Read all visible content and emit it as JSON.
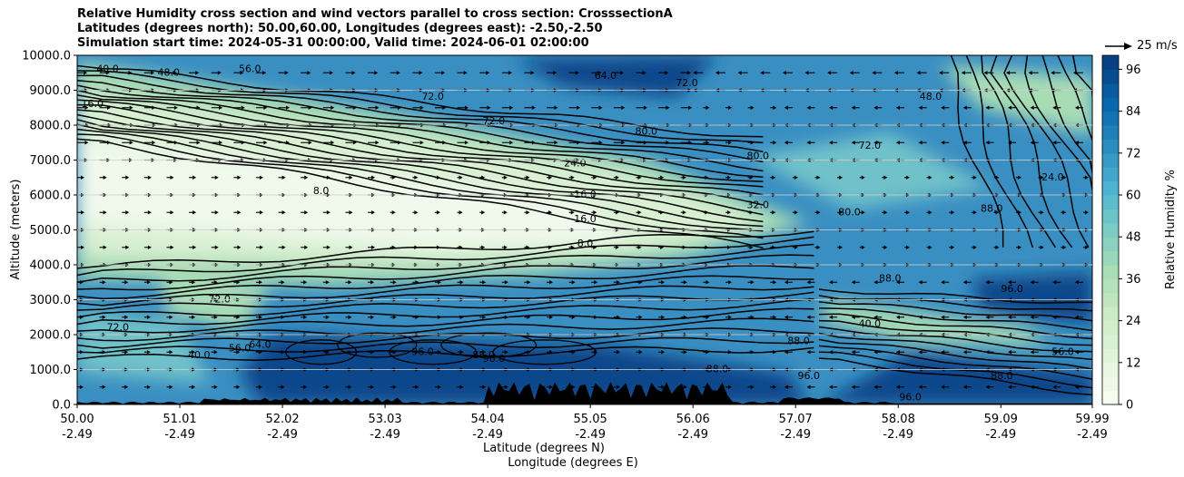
{
  "title": {
    "line1": "Relative Humidity cross section and wind vectors parallel to cross section: CrosssectionA",
    "line2": "Latitudes (degrees north): 50.00,60.00, Longitudes (degrees east): -2.50,-2.50",
    "line3": "Simulation start time: 2024-05-31 00:00:00, Valid time: 2024-06-01 02:00:00"
  },
  "wind_reference": {
    "label": "25 m/s"
  },
  "colors": {
    "humid_dark": "#08468b",
    "humid_mid": "#3a8fc2",
    "humid_light": "#6fc1c9",
    "dry_mid": "#a8dcb5",
    "dry_light": "#d9f0d3",
    "very_dry": "#f0f9ec",
    "terrain": "#000000"
  },
  "chart_data": {
    "type": "contourf",
    "xlabel_lat": "Latitude (degrees N)",
    "xlabel_lon": "Longitude (degrees E)",
    "ylabel": "Altitude (meters)",
    "ylim": [
      0,
      10000
    ],
    "yticks": [
      0,
      1000,
      2000,
      3000,
      4000,
      5000,
      6000,
      7000,
      8000,
      9000,
      10000
    ],
    "ytick_labels": [
      "0.0",
      "1000.0",
      "2000.0",
      "3000.0",
      "4000.0",
      "5000.0",
      "6000.0",
      "7000.0",
      "8000.0",
      "9000.0",
      "10000.0"
    ],
    "xlim": [
      50.0,
      59.99
    ],
    "xticks": [
      {
        "lat": "50.00",
        "lon": "-2.49"
      },
      {
        "lat": "51.01",
        "lon": "-2.49"
      },
      {
        "lat": "52.02",
        "lon": "-2.49"
      },
      {
        "lat": "53.03",
        "lon": "-2.49"
      },
      {
        "lat": "54.04",
        "lon": "-2.49"
      },
      {
        "lat": "55.05",
        "lon": "-2.49"
      },
      {
        "lat": "56.06",
        "lon": "-2.49"
      },
      {
        "lat": "57.07",
        "lon": "-2.49"
      },
      {
        "lat": "58.08",
        "lon": "-2.49"
      },
      {
        "lat": "59.09",
        "lon": "-2.49"
      },
      {
        "lat": "59.99",
        "lon": "-2.49"
      }
    ],
    "colorbar": {
      "label": "Relative Humidity %",
      "ticks": [
        0,
        12,
        24,
        36,
        48,
        60,
        72,
        84,
        96
      ],
      "levels": 25,
      "range": [
        0,
        100
      ]
    },
    "contour_labels": [
      {
        "text": "40.0",
        "lat": 50.3,
        "alt": 9600
      },
      {
        "text": "16.0",
        "lat": 50.15,
        "alt": 8600
      },
      {
        "text": "48.0",
        "lat": 50.9,
        "alt": 9500
      },
      {
        "text": "56.0",
        "lat": 51.7,
        "alt": 9600
      },
      {
        "text": "72.0",
        "lat": 53.5,
        "alt": 8800
      },
      {
        "text": "72.0",
        "lat": 54.1,
        "alt": 8100
      },
      {
        "text": "64.0",
        "lat": 55.2,
        "alt": 9400
      },
      {
        "text": "72.0",
        "lat": 56.0,
        "alt": 9200
      },
      {
        "text": "80.0",
        "lat": 55.6,
        "alt": 7800
      },
      {
        "text": "80.0",
        "lat": 56.7,
        "alt": 7100
      },
      {
        "text": "72.0",
        "lat": 57.8,
        "alt": 7400
      },
      {
        "text": "48.0",
        "lat": 58.4,
        "alt": 8800
      },
      {
        "text": "24.0",
        "lat": 59.6,
        "alt": 6500
      },
      {
        "text": "24.0",
        "lat": 54.9,
        "alt": 6900
      },
      {
        "text": "16.0",
        "lat": 55.0,
        "alt": 6000
      },
      {
        "text": "16.0",
        "lat": 55.0,
        "alt": 5300
      },
      {
        "text": "8.0",
        "lat": 55.0,
        "alt": 4600
      },
      {
        "text": "8.0",
        "lat": 52.4,
        "alt": 6100
      },
      {
        "text": "32.0",
        "lat": 56.7,
        "alt": 5700
      },
      {
        "text": "80.0",
        "lat": 57.6,
        "alt": 5500
      },
      {
        "text": "88.0",
        "lat": 59.0,
        "alt": 5600
      },
      {
        "text": "88.0",
        "lat": 58.0,
        "alt": 3600
      },
      {
        "text": "96.0",
        "lat": 59.2,
        "alt": 3300
      },
      {
        "text": "72.0",
        "lat": 50.4,
        "alt": 2200
      },
      {
        "text": "40.0",
        "lat": 51.2,
        "alt": 1400
      },
      {
        "text": "56.0",
        "lat": 51.6,
        "alt": 1600
      },
      {
        "text": "64.0",
        "lat": 51.8,
        "alt": 1700
      },
      {
        "text": "72.0",
        "lat": 51.4,
        "alt": 3000
      },
      {
        "text": "96.0",
        "lat": 53.4,
        "alt": 1500
      },
      {
        "text": "88.0",
        "lat": 54.0,
        "alt": 1400
      },
      {
        "text": "96.0",
        "lat": 54.1,
        "alt": 1300
      },
      {
        "text": "88.0",
        "lat": 56.3,
        "alt": 1000
      },
      {
        "text": "88.0",
        "lat": 57.1,
        "alt": 1800
      },
      {
        "text": "96.0",
        "lat": 57.2,
        "alt": 800
      },
      {
        "text": "40.0",
        "lat": 57.8,
        "alt": 2300
      },
      {
        "text": "56.0",
        "lat": 59.7,
        "alt": 1500
      },
      {
        "text": "88.0",
        "lat": 59.1,
        "alt": 800
      },
      {
        "text": "96.0",
        "lat": 58.2,
        "alt": 200
      }
    ]
  }
}
